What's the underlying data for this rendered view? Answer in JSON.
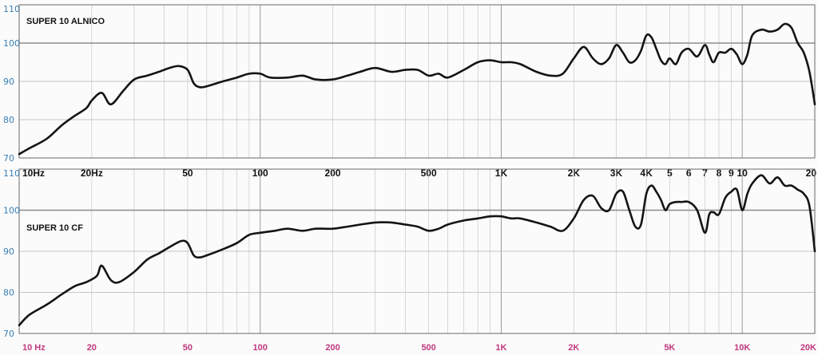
{
  "chart_data": [
    {
      "type": "line",
      "title": "SUPER 10 ALNICO",
      "xlabel": "",
      "ylabel": "",
      "x_scale": "log",
      "xlim": [
        10,
        20000
      ],
      "ylim": [
        70,
        110
      ],
      "y_ticks": [
        "70",
        "80",
        "90",
        "100",
        "110"
      ],
      "x_tick_labels": [
        {
          "f": 10,
          "label": "10Hz"
        },
        {
          "f": 20,
          "label": "20Hz"
        },
        {
          "f": 50,
          "label": "50"
        },
        {
          "f": 100,
          "label": "100"
        },
        {
          "f": 200,
          "label": "200"
        },
        {
          "f": 500,
          "label": "500"
        },
        {
          "f": 1000,
          "label": "1K"
        },
        {
          "f": 2000,
          "label": "2K"
        },
        {
          "f": 3000,
          "label": "3K"
        },
        {
          "f": 4000,
          "label": "4K"
        },
        {
          "f": 5000,
          "label": "5"
        },
        {
          "f": 6000,
          "label": "6"
        },
        {
          "f": 7000,
          "label": "7"
        },
        {
          "f": 8000,
          "label": "8"
        },
        {
          "f": 9000,
          "label": "9"
        },
        {
          "f": 10000,
          "label": "10"
        },
        {
          "f": 20000,
          "label": "20"
        }
      ],
      "grid": true,
      "reference_level": 100,
      "series": [
        {
          "x": [
            10,
            11,
            13,
            15,
            17,
            19,
            20,
            22,
            24,
            27,
            30,
            34,
            38,
            42,
            46,
            50,
            53,
            56,
            60,
            70,
            80,
            90,
            100,
            110,
            130,
            150,
            170,
            200,
            230,
            260,
            300,
            350,
            400,
            450,
            500,
            550,
            600,
            700,
            800,
            900,
            1000,
            1100,
            1200,
            1400,
            1600,
            1800,
            2000,
            2200,
            2400,
            2600,
            2800,
            3000,
            3200,
            3400,
            3600,
            3800,
            4000,
            4200,
            4400,
            4600,
            4800,
            5000,
            5300,
            5600,
            6000,
            6500,
            7000,
            7300,
            7600,
            8000,
            8500,
            9000,
            9500,
            10000,
            10500,
            11000,
            12000,
            13000,
            14000,
            15000,
            16000,
            17000,
            18000,
            19000,
            20000
          ],
          "y": [
            71,
            72.5,
            75,
            78.5,
            81,
            83,
            85,
            87,
            84,
            87.5,
            90.5,
            91.5,
            92.5,
            93.5,
            94,
            93,
            89.5,
            88.5,
            88.7,
            90,
            91,
            92,
            92,
            91,
            91,
            91.5,
            90.5,
            90.5,
            91.5,
            92.5,
            93.5,
            92.5,
            93,
            93,
            91.5,
            92,
            91,
            93,
            95,
            95.5,
            95,
            95,
            94.5,
            92.5,
            91.5,
            92,
            96,
            99,
            96,
            94.5,
            96,
            99.5,
            97.5,
            95,
            95.5,
            98,
            102,
            101.5,
            98.5,
            95.5,
            94.5,
            96,
            94.5,
            97.5,
            98.5,
            96.5,
            99.5,
            97,
            95,
            97.5,
            97.5,
            98.5,
            97,
            94.5,
            97,
            102,
            103.5,
            103,
            103.5,
            105,
            104,
            100,
            97.5,
            92.5,
            84
          ]
        }
      ]
    },
    {
      "type": "line",
      "title": "SUPER 10 CF",
      "xlabel": "",
      "ylabel": "",
      "x_scale": "log",
      "xlim": [
        10,
        20000
      ],
      "ylim": [
        70,
        110
      ],
      "y_ticks": [
        "70",
        "80",
        "90",
        "100",
        "110"
      ],
      "x_tick_labels": [
        {
          "f": 10,
          "label": "10  Hz"
        },
        {
          "f": 20,
          "label": "20"
        },
        {
          "f": 50,
          "label": "50"
        },
        {
          "f": 100,
          "label": "100"
        },
        {
          "f": 200,
          "label": "200"
        },
        {
          "f": 500,
          "label": "500"
        },
        {
          "f": 1000,
          "label": "1K"
        },
        {
          "f": 2000,
          "label": "2K"
        },
        {
          "f": 5000,
          "label": "5K"
        },
        {
          "f": 10000,
          "label": "10K"
        },
        {
          "f": 20000,
          "label": "20K"
        }
      ],
      "grid": true,
      "reference_level": 100,
      "series": [
        {
          "x": [
            10,
            11,
            13,
            15,
            17,
            19,
            21,
            22,
            24,
            26,
            30,
            34,
            38,
            42,
            47,
            50,
            53,
            56,
            60,
            70,
            80,
            90,
            100,
            115,
            130,
            150,
            170,
            200,
            230,
            260,
            300,
            350,
            400,
            450,
            500,
            550,
            600,
            700,
            800,
            900,
            1000,
            1100,
            1200,
            1400,
            1600,
            1800,
            2000,
            2200,
            2400,
            2600,
            2800,
            3000,
            3200,
            3400,
            3600,
            3800,
            4000,
            4200,
            4400,
            4600,
            4800,
            5000,
            5300,
            5600,
            6000,
            6500,
            7000,
            7300,
            7600,
            8000,
            8500,
            9000,
            9500,
            10000,
            10500,
            11000,
            12000,
            13000,
            14000,
            15000,
            16000,
            17000,
            18000,
            19000,
            20000
          ],
          "y": [
            72,
            74.5,
            77,
            79.5,
            81.5,
            82.5,
            84,
            86.5,
            83,
            82.5,
            85,
            88,
            89.5,
            91,
            92.5,
            92,
            89,
            88.5,
            89,
            90.5,
            92,
            94,
            94.5,
            95,
            95.5,
            95,
            95.5,
            95.5,
            96,
            96.5,
            97,
            97,
            96.5,
            96,
            95,
            95.5,
            96.5,
            97.5,
            98,
            98.5,
            98.5,
            98,
            98,
            97,
            96,
            95,
            98,
            102.5,
            103.5,
            100.5,
            100,
            104,
            104.5,
            100,
            96,
            96.5,
            104,
            106,
            104.5,
            102.5,
            100,
            101.5,
            102,
            102,
            102,
            100,
            94.5,
            99,
            99.5,
            99,
            103,
            104.5,
            105,
            100,
            104,
            106.5,
            108.5,
            106.5,
            108,
            106,
            106,
            105,
            104,
            101,
            90
          ]
        }
      ]
    }
  ]
}
